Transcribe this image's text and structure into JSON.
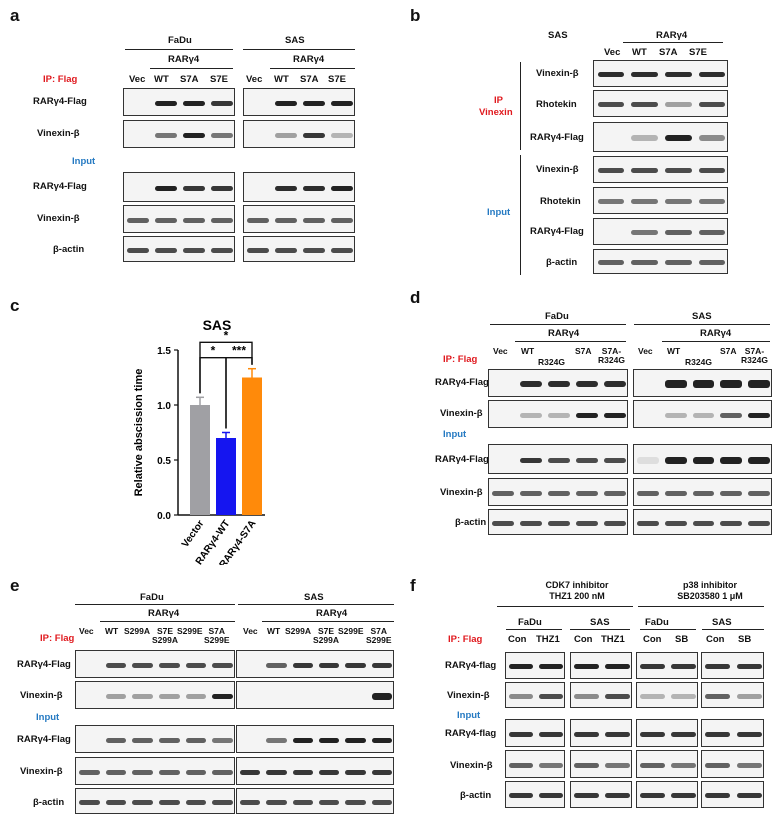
{
  "panels": {
    "a": {
      "label": "a",
      "groups": [
        "FaDu",
        "SAS"
      ],
      "construct": "RARγ4",
      "lanes": [
        "Vec",
        "WT",
        "S7A",
        "S7E"
      ],
      "section_ip": "IP: Flag",
      "section_input": "Input",
      "rows_ip": [
        "RARγ4-Flag",
        "Vinexin-β"
      ],
      "rows_input": [
        "RARγ4-Flag",
        "Vinexin-β",
        "β-actin"
      ]
    },
    "b": {
      "label": "b",
      "group": "SAS",
      "construct": "RARγ4",
      "lanes": [
        "Vec",
        "WT",
        "S7A",
        "S7E"
      ],
      "section_ip": "IP\nVinexin",
      "section_input": "Input",
      "rows_ip": [
        "Vinexin-β",
        "Rhotekin",
        "RARγ4-Flag"
      ],
      "rows_input": [
        "Vinexin-β",
        "Rhotekin",
        "RARγ4-Flag",
        "β-actin"
      ]
    },
    "c": {
      "label": "c"
    },
    "d": {
      "label": "d",
      "groups": [
        "FaDu",
        "SAS"
      ],
      "construct": "RARγ4",
      "lanes": [
        "Vec",
        "WT",
        "R324G",
        "S7A",
        "S7A-\nR324G"
      ],
      "section_ip": "IP: Flag",
      "section_input": "Input",
      "rows_ip": [
        "RARγ4-Flag",
        "Vinexin-β"
      ],
      "rows_input": [
        "RARγ4-Flag",
        "Vinexin-β",
        "β-actin"
      ]
    },
    "e": {
      "label": "e",
      "groups": [
        "FaDu",
        "SAS"
      ],
      "construct": "RARγ4",
      "lanes": [
        "Vec",
        "WT",
        "S299A",
        "S7E\nS299A",
        "S299E",
        "S7A\nS299E"
      ],
      "section_ip": "IP: Flag",
      "section_input": "Input",
      "rows_ip": [
        "RARγ4-Flag",
        "Vinexin-β"
      ],
      "rows_input": [
        "RARγ4-Flag",
        "Vinexin-β",
        "β-actin"
      ]
    },
    "f": {
      "label": "f",
      "inhibitor1": "CDK7 inhibitor\nTHZ1 200 nM",
      "inhibitor2": "p38 inhibitor\nSB203580 1 μM",
      "groups": [
        "FaDu",
        "SAS",
        "FaDu",
        "SAS"
      ],
      "lanes1": [
        "Con",
        "THZ1",
        "Con",
        "THZ1"
      ],
      "lanes2": [
        "Con",
        "SB",
        "Con",
        "SB"
      ],
      "section_ip": "IP: Flag",
      "section_input": "Input",
      "rows_ip": [
        "RARγ4-flag",
        "Vinexin-β"
      ],
      "rows_input": [
        "RARγ4-flag",
        "Vinexin-β",
        "β-actin"
      ]
    }
  },
  "chart_data": {
    "type": "bar",
    "title": "SAS",
    "categories": [
      "Vector",
      "RARγ4-WT",
      "RARγ4-S7A"
    ],
    "values": [
      1.0,
      0.7,
      1.25
    ],
    "errors": [
      0.07,
      0.05,
      0.08
    ],
    "colors": [
      "#a0a0a4",
      "#1515f0",
      "#ff8a0a"
    ],
    "ylabel": "Relative abscission time",
    "ylim": [
      0,
      1.5
    ],
    "yticks": [
      "0.0",
      "0.5",
      "1.0",
      "1.5"
    ],
    "significance": [
      {
        "pair": [
          0,
          1
        ],
        "text": "*"
      },
      {
        "pair": [
          1,
          2
        ],
        "text": "***"
      },
      {
        "pair": [
          0,
          2
        ],
        "text": "*"
      }
    ]
  },
  "colors": {
    "ip_label": "#e0191e",
    "input_label": "#2479c2"
  }
}
